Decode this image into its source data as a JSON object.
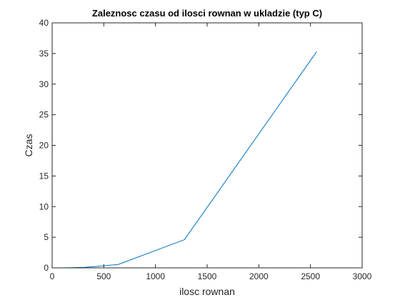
{
  "chart_data": {
    "type": "line",
    "title": "Zaleznosc czasu od ilosci rownan w ukladzie (typ C)",
    "xlabel": "ilosc rownan",
    "ylabel": "Czas",
    "xlim": [
      0,
      3000
    ],
    "ylim": [
      0,
      40
    ],
    "xticks": [
      0,
      500,
      1000,
      1500,
      2000,
      2500,
      3000
    ],
    "yticks": [
      0,
      5,
      10,
      15,
      20,
      25,
      30,
      35,
      40
    ],
    "grid": false,
    "legend": "none",
    "series": [
      {
        "color": "#0072BD",
        "x": [
          10,
          40,
          80,
          160,
          320,
          640,
          1280,
          2560
        ],
        "y": [
          0.0,
          0.0,
          0.0,
          0.01,
          0.08,
          0.55,
          4.6,
          35.3
        ]
      }
    ]
  }
}
